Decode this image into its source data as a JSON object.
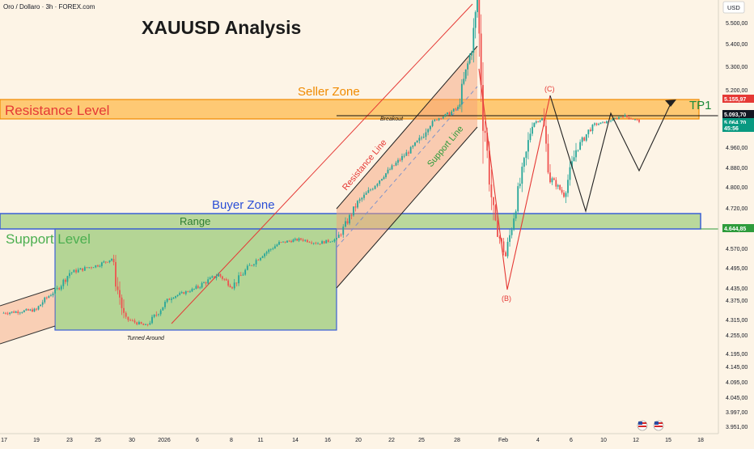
{
  "header": {
    "symbol_label": "Oro / Dollaro · 3h · FOREX.com",
    "title": "XAUUSD Analysis",
    "currency_button": "USD"
  },
  "chart_data": {
    "type": "candlestick",
    "y_axis": {
      "range": [
        3935,
        5620
      ],
      "ticks": [
        "5.500,00",
        "5.400,00",
        "5.300,00",
        "5.200,00",
        "5.100,00",
        "5.020,00",
        "4.960,00",
        "4.880,00",
        "4.800,00",
        "4.720,00",
        "4.645,00",
        "4.570,00",
        "4.495,00",
        "4.435,00",
        "4.375,00",
        "4.315,00",
        "4.255,00",
        "4.195,00",
        "4.145,00",
        "4.095,00",
        "4.045,00",
        "3.997,00",
        "3.951,00"
      ]
    },
    "x_axis": {
      "ticks": [
        "17",
        "19",
        "23",
        "25",
        "30",
        "2026",
        "6",
        "8",
        "11",
        "14",
        "16",
        "20",
        "22",
        "25",
        "28",
        "Feb",
        "4",
        "6",
        "10",
        "12",
        "15",
        "18"
      ]
    },
    "price_labels": [
      {
        "text": "5.155,97",
        "color": "#e53935"
      },
      {
        "text": "5.093,70",
        "color": "#131722"
      },
      {
        "text": "5.064,70",
        "color": "#089981"
      },
      {
        "text": "45:56",
        "color": "#089981"
      },
      {
        "text": "4.644,85",
        "color": "#2e9c3c"
      }
    ],
    "levels": {
      "resistance_top": 5155.97,
      "resistance_bottom": 5085,
      "breakout": 5093.7,
      "last_price": 5064.7,
      "range_top": 4695,
      "range_bottom": 4644.85
    },
    "zones": {
      "resistance_label": "Resistance Level",
      "seller_label": "Seller Zone",
      "buyer_label": "Buyer Zone",
      "range_label": "Range",
      "support_label": "Support Level",
      "breakout_label": "Breakout",
      "resistance_line_label": "Resistance Line",
      "support_line_label": "Support Line",
      "turned_around_label": "Turned Around",
      "tp_label": "TP1"
    },
    "waves": [
      {
        "label": "(B)",
        "price": 4410
      },
      {
        "label": "(C)",
        "price": 5175
      }
    ],
    "price_path": [
      [
        "Dec 17",
        4335
      ],
      [
        "Dec 19",
        4345
      ],
      [
        "Dec 23",
        4480
      ],
      [
        "Dec 25",
        4505
      ],
      [
        "Dec 26",
        4530
      ],
      [
        "Dec 29",
        4320
      ],
      [
        "Dec 31",
        4290
      ],
      [
        "Jan 2",
        4390
      ],
      [
        "Jan 5",
        4430
      ],
      [
        "Jan 6",
        4450
      ],
      [
        "Jan 7",
        4475
      ],
      [
        "Jan 9",
        4440
      ],
      [
        "Jan 11",
        4540
      ],
      [
        "Jan 13",
        4590
      ],
      [
        "Jan 14",
        4600
      ],
      [
        "Jan 15",
        4605
      ],
      [
        "Jan 16",
        4590
      ],
      [
        "Jan 17",
        4605
      ],
      [
        "Jan 18",
        4660
      ],
      [
        "Jan 19",
        4740
      ],
      [
        "Jan 20",
        4790
      ],
      [
        "Jan 21",
        4840
      ],
      [
        "Jan 22",
        4920
      ],
      [
        "Jan 23",
        4990
      ],
      [
        "Jan 25",
        5080
      ],
      [
        "Jan 27",
        5130
      ],
      [
        "Jan 28",
        5380
      ],
      [
        "Jan 29",
        5600
      ],
      [
        "Jan 30",
        5100
      ],
      [
        "Jan 31",
        4680
      ],
      [
        "Feb 1",
        4540
      ],
      [
        "Feb 3",
        5050
      ],
      [
        "Feb 4",
        5080
      ],
      [
        "Feb 5",
        4840
      ],
      [
        "Feb 6",
        4770
      ],
      [
        "Feb 7",
        4950
      ],
      [
        "Feb 9",
        5040
      ],
      [
        "Feb 10",
        5060
      ],
      [
        "Feb 11",
        5100
      ],
      [
        "Feb 12",
        5064.7
      ]
    ],
    "projection": [
      {
        "label": "(C)",
        "price": 5175
      },
      {
        "label": "",
        "price": 4700
      },
      {
        "label": "",
        "price": 5105
      },
      {
        "label": "",
        "price": 4865
      },
      {
        "label": "TP1",
        "price": 5160
      }
    ]
  }
}
